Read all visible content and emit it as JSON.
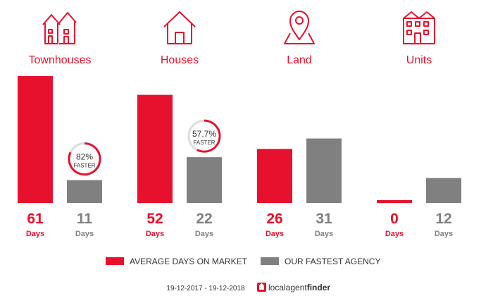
{
  "chart_data": {
    "type": "bar",
    "categories": [
      "Townhouses",
      "Houses",
      "Land",
      "Units"
    ],
    "category_icons": [
      "townhouses-icon",
      "house-icon",
      "map-pin-icon",
      "units-icon"
    ],
    "series": [
      {
        "name": "AVERAGE DAYS ON MARKET",
        "values": [
          61,
          52,
          26,
          0
        ]
      },
      {
        "name": "OUR FASTEST AGENCY",
        "values": [
          11,
          22,
          31,
          12
        ]
      }
    ],
    "value_unit": "Days",
    "faster_badges": [
      {
        "category": "Townhouses",
        "percent": "82%",
        "label": "FASTER",
        "fraction": 0.82
      },
      {
        "category": "Houses",
        "percent": "57.7%",
        "label": "FASTER",
        "fraction": 0.577
      }
    ],
    "ylim": [
      0,
      61
    ],
    "grid": false,
    "legend_position": "bottom"
  },
  "colors": {
    "primary": "#e8112d",
    "secondary": "#808080",
    "badge_track": "#dddddd",
    "text_dark": "#333333"
  },
  "footer": {
    "date_range": "19-12-2017 - 19-12-2018",
    "brand_local": "localagent",
    "brand_finder": "finder",
    "brand_icon": "localagentfinder-logo-icon"
  }
}
